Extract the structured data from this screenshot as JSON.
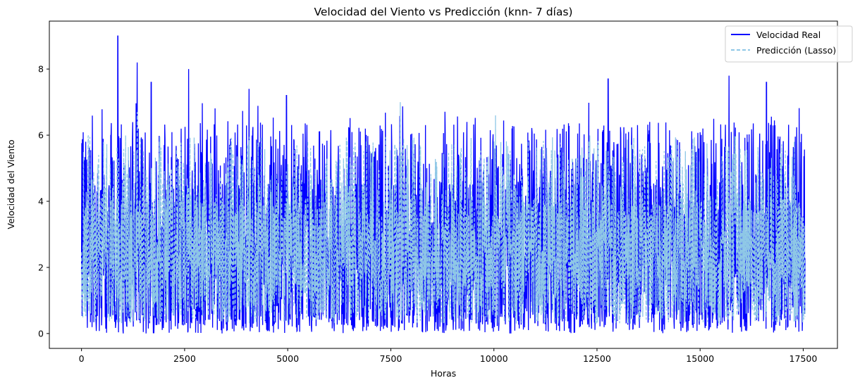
{
  "chart_data": {
    "type": "line",
    "title": "Velocidad del Viento vs Predicción (knn- 7 días)",
    "xlabel": "Horas",
    "ylabel": "Velocidad del Viento",
    "xlim": [
      -780,
      18330
    ],
    "ylim": [
      -0.45,
      9.45
    ],
    "xticks": [
      0,
      2500,
      5000,
      7500,
      10000,
      12500,
      15000,
      17500
    ],
    "xtick_labels": [
      "0",
      "2500",
      "5000",
      "7500",
      "10000",
      "12500",
      "15000",
      "17500"
    ],
    "yticks": [
      0,
      2,
      4,
      6,
      8
    ],
    "ytick_labels": [
      "0",
      "2",
      "4",
      "6",
      "8"
    ],
    "grid": false,
    "legend_position": "top-right",
    "n_points": 17544,
    "series": [
      {
        "name": "Velocidad Real",
        "color": "#0000ff",
        "style": "solid",
        "typical_range": [
          0.0,
          5.8
        ],
        "peaks": [
          {
            "x": 880,
            "y": 9.0
          },
          {
            "x": 1350,
            "y": 8.2
          },
          {
            "x": 1690,
            "y": 7.6
          },
          {
            "x": 2600,
            "y": 8.0
          },
          {
            "x": 4060,
            "y": 7.4
          },
          {
            "x": 4970,
            "y": 7.2
          },
          {
            "x": 12770,
            "y": 7.7
          },
          {
            "x": 15700,
            "y": 7.8
          },
          {
            "x": 16610,
            "y": 7.6
          }
        ]
      },
      {
        "name": "Predicción (Lasso)",
        "color": "#8ec7e6",
        "style": "dashed",
        "typical_range": [
          0.3,
          5.0
        ],
        "peaks": [
          {
            "x": 1350,
            "y": 6.7
          },
          {
            "x": 7730,
            "y": 7.0
          },
          {
            "x": 10040,
            "y": 6.6
          }
        ]
      }
    ]
  }
}
